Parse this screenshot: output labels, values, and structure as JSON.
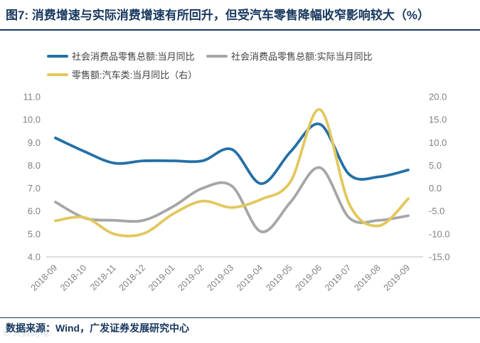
{
  "footer": {
    "source": "数据来源：Wind，广发证券发展研究中心",
    "watermark": "© 大数跨境"
  },
  "chart_data": {
    "type": "line",
    "title": "图7: 消费增速与实际消费增速有所回升，但受汽车零售降幅收窄影响较大（%）",
    "categories": [
      "2018-09",
      "2018-10",
      "2018-11",
      "2018-12",
      "2019-01",
      "2019-02",
      "2019-03",
      "2019-04",
      "2019-05",
      "2019-06",
      "2019-07",
      "2019-08",
      "2019-09"
    ],
    "series": [
      {
        "name": "社会消费品零售总额:当月同比",
        "axis": "left",
        "color": "#2470A6",
        "values": [
          9.2,
          8.6,
          8.1,
          8.2,
          8.2,
          8.2,
          8.7,
          7.2,
          8.6,
          9.8,
          7.6,
          7.5,
          7.8
        ]
      },
      {
        "name": "社会消费品零售总额:实际当月同比",
        "axis": "left",
        "color": "#A6A6A6",
        "values": [
          6.4,
          5.7,
          5.6,
          5.6,
          6.2,
          7.0,
          7.1,
          5.1,
          6.4,
          7.9,
          5.7,
          5.6,
          5.8
        ]
      },
      {
        "name": "零售额:汽车类:当月同比（右）",
        "axis": "right",
        "color": "#E3C75D",
        "values": [
          -7.1,
          -6.4,
          -10.0,
          -9.9,
          -5.6,
          -2.8,
          -4.2,
          -2.4,
          1.5,
          17.2,
          -3.5,
          -8.2,
          -2.3
        ]
      }
    ],
    "left_axis": {
      "range": [
        4.0,
        11.0
      ],
      "tick_labels": [
        "11.0",
        "10.0",
        "9.0",
        "8.0",
        "7.0",
        "6.0",
        "5.0",
        "4.0"
      ]
    },
    "right_axis": {
      "range": [
        -15.0,
        20.0
      ],
      "tick_labels": [
        "20.0",
        "15.0",
        "10.0",
        "5.0",
        "0.0",
        "-5.0",
        "-10.0",
        "-15.0"
      ]
    },
    "grid": false,
    "legend_position": "top-left",
    "xlabel": "",
    "ylabel": ""
  }
}
